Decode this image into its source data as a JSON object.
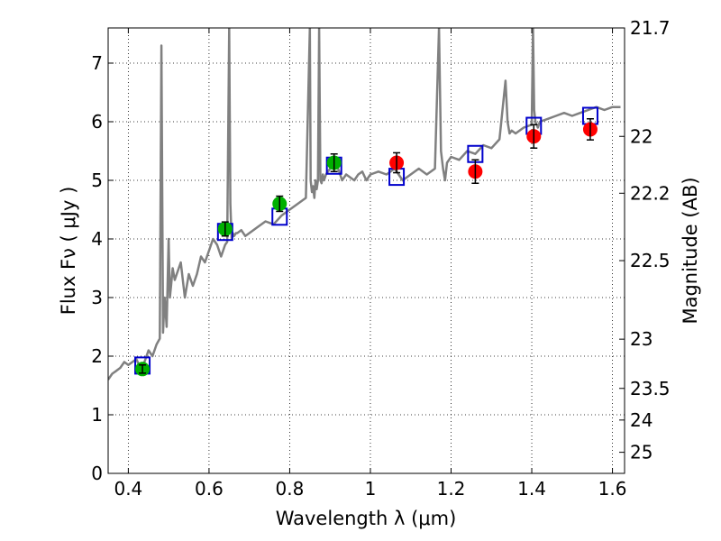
{
  "chart_data": {
    "type": "scatter",
    "xlabel": "Wavelength  λ (μm)",
    "ylabel": "Flux  Fν  ( μJy )",
    "y2label": "Magnitude (AB)",
    "xlim": [
      0.35,
      1.63
    ],
    "ylim": [
      0,
      7.6
    ],
    "grid": true,
    "x_ticks": [
      0.4,
      0.6,
      0.8,
      1.0,
      1.2,
      1.4,
      1.6
    ],
    "x_tick_labels": [
      "0.4",
      "0.6",
      "0.8",
      "1",
      "1.2",
      "1.4",
      "1.6"
    ],
    "y_ticks": [
      0,
      1,
      2,
      3,
      4,
      5,
      6,
      7
    ],
    "y_tick_labels": [
      "0",
      "1",
      "2",
      "3",
      "4",
      "5",
      "6",
      "7"
    ],
    "y2_ticks": [
      {
        "label": "21.7",
        "flux": 7.6
      },
      {
        "label": "22",
        "flux": 5.75
      },
      {
        "label": "22.2",
        "flux": 4.78
      },
      {
        "label": "22.5",
        "flux": 3.63
      },
      {
        "label": "23",
        "flux": 2.29
      },
      {
        "label": "23.5",
        "flux": 1.45
      },
      {
        "label": "24",
        "flux": 0.91
      },
      {
        "label": "25",
        "flux": 0.36
      }
    ],
    "colors": {
      "spectrum": "#808080",
      "model_points": "#0000cc",
      "green_points": "#00b000",
      "red_points": "#ff0000"
    },
    "series": [
      {
        "style": "gray-line",
        "x": [
          0.35,
          0.36,
          0.37,
          0.38,
          0.39,
          0.4,
          0.41,
          0.42,
          0.43,
          0.44,
          0.45,
          0.46,
          0.47,
          0.478,
          0.482,
          0.486,
          0.49,
          0.495,
          0.5,
          0.503,
          0.506,
          0.51,
          0.515,
          0.52,
          0.53,
          0.54,
          0.55,
          0.56,
          0.57,
          0.58,
          0.59,
          0.6,
          0.61,
          0.62,
          0.63,
          0.64,
          0.645,
          0.65,
          0.653,
          0.656,
          0.659,
          0.662,
          0.667,
          0.67,
          0.68,
          0.69,
          0.7,
          0.72,
          0.74,
          0.76,
          0.78,
          0.8,
          0.82,
          0.84,
          0.85,
          0.852,
          0.855,
          0.858,
          0.861,
          0.864,
          0.867,
          0.87,
          0.873,
          0.876,
          0.879,
          0.882,
          0.885,
          0.89,
          0.9,
          0.91,
          0.92,
          0.93,
          0.94,
          0.95,
          0.96,
          0.97,
          0.98,
          0.99,
          1.0,
          1.02,
          1.04,
          1.06,
          1.08,
          1.1,
          1.12,
          1.14,
          1.16,
          1.17,
          1.175,
          1.18,
          1.185,
          1.19,
          1.2,
          1.22,
          1.24,
          1.26,
          1.28,
          1.3,
          1.32,
          1.335,
          1.34,
          1.345,
          1.35,
          1.36,
          1.38,
          1.4,
          1.403,
          1.406,
          1.409,
          1.412,
          1.415,
          1.42,
          1.44,
          1.46,
          1.48,
          1.5,
          1.52,
          1.54,
          1.56,
          1.58,
          1.6,
          1.62
        ],
        "y": [
          1.6,
          1.7,
          1.75,
          1.8,
          1.9,
          1.85,
          1.9,
          1.95,
          1.8,
          1.9,
          2.1,
          2.0,
          2.2,
          2.3,
          7.3,
          2.4,
          3.0,
          2.5,
          4.0,
          3.0,
          3.2,
          3.5,
          3.3,
          3.4,
          3.6,
          3.0,
          3.4,
          3.2,
          3.4,
          3.7,
          3.6,
          3.8,
          4.0,
          3.9,
          3.7,
          3.9,
          3.95,
          7.6,
          4.6,
          4.0,
          4.1,
          4.05,
          4.1,
          4.1,
          4.15,
          4.05,
          4.1,
          4.2,
          4.3,
          4.25,
          4.4,
          4.5,
          4.6,
          4.7,
          7.6,
          5.0,
          4.8,
          4.9,
          4.7,
          5.0,
          4.85,
          5.0,
          7.6,
          5.0,
          4.95,
          5.1,
          5.0,
          5.1,
          5.2,
          5.25,
          5.2,
          5.0,
          5.1,
          5.05,
          5.0,
          5.1,
          5.15,
          5.0,
          5.1,
          5.15,
          5.1,
          5.2,
          5.0,
          5.1,
          5.2,
          5.1,
          5.2,
          7.6,
          5.5,
          5.2,
          5.0,
          5.3,
          5.4,
          5.35,
          5.5,
          5.45,
          5.6,
          5.55,
          5.7,
          6.7,
          6.0,
          5.8,
          5.85,
          5.8,
          5.9,
          5.95,
          7.6,
          6.2,
          6.0,
          5.95,
          5.9,
          6.0,
          6.05,
          6.1,
          6.15,
          6.1,
          6.15,
          6.2,
          6.25,
          6.2,
          6.25,
          6.25
        ]
      },
      {
        "style": "blue-open-squares",
        "x": [
          0.435,
          0.64,
          0.775,
          0.91,
          1.065,
          1.26,
          1.405,
          1.545
        ],
        "y": [
          1.84,
          4.12,
          4.38,
          5.25,
          5.06,
          5.45,
          5.93,
          6.1
        ]
      },
      {
        "style": "green-filled-circles",
        "x": [
          0.435,
          0.64,
          0.775,
          0.91
        ],
        "y": [
          1.78,
          4.17,
          4.6,
          5.3
        ],
        "yerr": [
          0.07,
          0.12,
          0.13,
          0.15
        ]
      },
      {
        "style": "red-filled-circles",
        "x": [
          1.065,
          1.26,
          1.405,
          1.545
        ],
        "y": [
          5.3,
          5.15,
          5.75,
          5.87
        ],
        "yerr": [
          0.17,
          0.2,
          0.2,
          0.18
        ]
      }
    ]
  }
}
